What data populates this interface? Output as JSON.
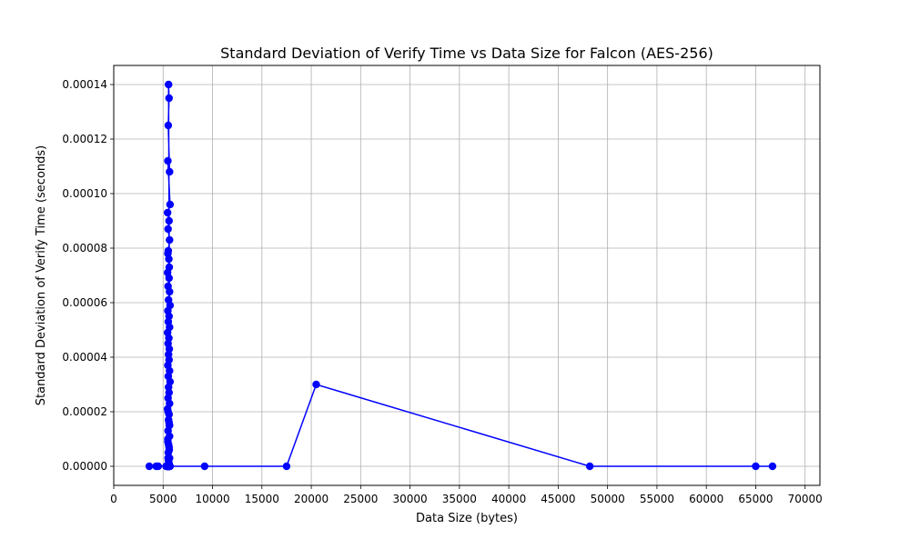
{
  "chart_data": {
    "type": "line",
    "title": "Standard Deviation of Verify Time vs Data Size for Falcon (AES-256)",
    "xlabel": "Data Size (bytes)",
    "ylabel": "Standard Deviation of Verify Time (seconds)",
    "xlim": [
      0,
      71500
    ],
    "ylim": [
      -7e-06,
      0.000147
    ],
    "xticks": [
      0,
      5000,
      10000,
      15000,
      20000,
      25000,
      30000,
      35000,
      40000,
      45000,
      50000,
      55000,
      60000,
      65000,
      70000
    ],
    "xtick_labels": [
      "0",
      "5000",
      "10000",
      "15000",
      "20000",
      "25000",
      "30000",
      "35000",
      "40000",
      "45000",
      "50000",
      "55000",
      "60000",
      "65000",
      "70000"
    ],
    "yticks": [
      0,
      2e-05,
      4e-05,
      6e-05,
      8e-05,
      0.0001,
      0.00012,
      0.00014
    ],
    "ytick_labels": [
      "0.00000",
      "0.00002",
      "0.00004",
      "0.00006",
      "0.00008",
      "0.00010",
      "0.00012",
      "0.00014"
    ],
    "grid": true,
    "colors": {
      "series": "#0000ff",
      "grid": "#b0b0b0",
      "axis": "#000000"
    },
    "series": [
      {
        "x": [
          3600,
          4300,
          4500,
          5300,
          5350,
          5400,
          5420,
          5450,
          5480,
          5500,
          5520,
          5550,
          5580,
          5600,
          5620,
          5650,
          5680,
          5700,
          5550,
          5600,
          5520,
          5650,
          5480,
          5700,
          5450,
          5600,
          5500,
          5650,
          5520,
          5580,
          5480,
          5620,
          5450,
          5600,
          5500,
          5650,
          5550,
          5700,
          5480,
          5600,
          5520,
          5650,
          5450,
          5580,
          5500,
          5620,
          5550,
          5600,
          5480,
          5650,
          5520,
          5700,
          5550,
          5600,
          5500,
          5650,
          5450,
          5600,
          5550,
          5620,
          5500,
          5650,
          5480,
          5600,
          5520,
          5650,
          5550,
          5600,
          5500,
          5620,
          5480,
          5600,
          5500,
          5650,
          5550,
          5600,
          9200,
          17500,
          20500,
          48200,
          65000,
          66700
        ],
        "y": [
          0,
          0,
          0,
          0,
          0,
          0,
          0,
          0,
          0,
          0,
          0,
          0,
          0,
          0,
          0,
          0,
          0,
          0,
          0.00014,
          0.000135,
          0.000125,
          0.000108,
          0.000112,
          9.6e-05,
          9.3e-05,
          9e-05,
          8.7e-05,
          8.3e-05,
          7.9e-05,
          7.6e-05,
          7.8e-05,
          7.3e-05,
          7.1e-05,
          6.9e-05,
          6.6e-05,
          6.4e-05,
          6.1e-05,
          5.9e-05,
          5.7e-05,
          5.5e-05,
          5.3e-05,
          5.1e-05,
          4.9e-05,
          4.7e-05,
          4.5e-05,
          4.3e-05,
          4.1e-05,
          3.9e-05,
          3.7e-05,
          3.5e-05,
          3.3e-05,
          3.1e-05,
          2.9e-05,
          2.7e-05,
          2.5e-05,
          2.3e-05,
          2.1e-05,
          1.9e-05,
          1.7e-05,
          1.5e-05,
          1.3e-05,
          1.1e-05,
          9e-06,
          7e-06,
          5e-06,
          3e-06,
          2e-06,
          1e-06,
          3e-06,
          6e-06,
          1e-05,
          1.6e-05,
          2e-05,
          1.5e-05,
          8e-06,
          0,
          0,
          0,
          3e-05,
          0,
          0,
          0
        ]
      }
    ]
  }
}
